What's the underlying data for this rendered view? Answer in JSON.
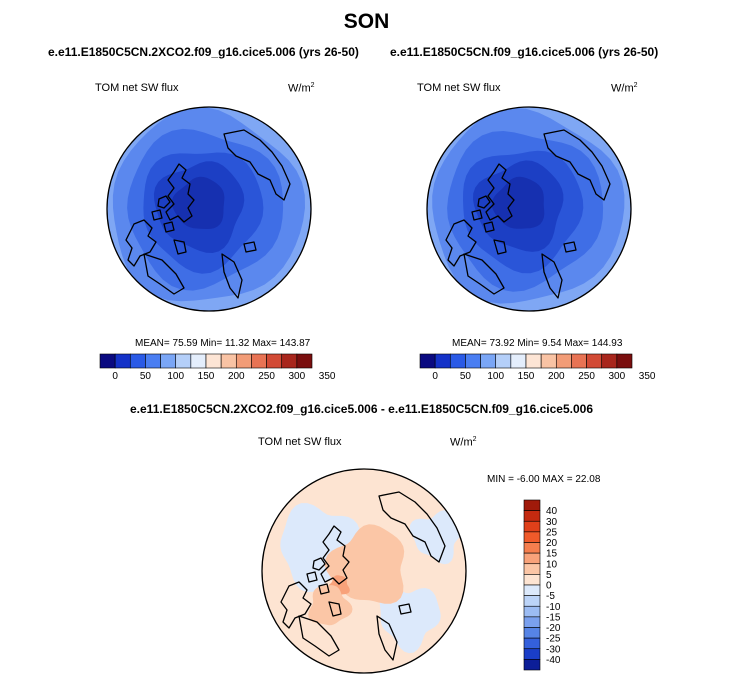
{
  "season": "SON",
  "panels": [
    {
      "case": "e.e11.E1850C5CN.2XCO2.f09_g16.cice5.006 (yrs 26-50)",
      "variable": "TOM net SW flux",
      "units_base": "W/m",
      "units_exp": "2",
      "stats": "MEAN=  75.59  Min=  11.32  Max= 143.87"
    },
    {
      "case": "e.e11.E1850C5CN.f09_g16.cice5.006 (yrs 26-50)",
      "variable": "TOM net SW flux",
      "units_base": "W/m",
      "units_exp": "2",
      "stats": "MEAN=  73.92  Min=   9.54  Max= 144.93"
    }
  ],
  "diff_panel": {
    "title": "e.e11.E1850C5CN.2XCO2.f09_g16.cice5.006 - e.e11.E1850C5CN.f09_g16.cice5.006",
    "variable": "TOM net SW flux",
    "units_base": "W/m",
    "units_exp": "2",
    "stats": "MIN =  -6.00 MAX =  22.08"
  },
  "chart_data": [
    {
      "type": "heatmap",
      "projection": "north-polar-stereographic",
      "title": "e.e11.E1850C5CN.2XCO2.f09_g16.cice5.006 (yrs 26-50)",
      "variable": "TOM net SW flux",
      "units": "W/m2",
      "mean": 75.59,
      "min": 11.32,
      "max": 143.87,
      "colorbar_ticks": [
        "0",
        "50",
        "100",
        "150",
        "200",
        "250",
        "300",
        "350"
      ],
      "colorbar_colors": [
        "#0a0a80",
        "#1432c8",
        "#2a5ae6",
        "#4a7ef2",
        "#7aa6f6",
        "#b4cff9",
        "#e4eefc",
        "#fde5d5",
        "#f9c3a4",
        "#f29c77",
        "#e87354",
        "#d24a35",
        "#a8261c",
        "#7a0e0e"
      ]
    },
    {
      "type": "heatmap",
      "projection": "north-polar-stereographic",
      "title": "e.e11.E1850C5CN.f09_g16.cice5.006 (yrs 26-50)",
      "variable": "TOM net SW flux",
      "units": "W/m2",
      "mean": 73.92,
      "min": 9.54,
      "max": 144.93,
      "colorbar_ticks": [
        "0",
        "50",
        "100",
        "150",
        "200",
        "250",
        "300",
        "350"
      ],
      "colorbar_colors": [
        "#0a0a80",
        "#1432c8",
        "#2a5ae6",
        "#4a7ef2",
        "#7aa6f6",
        "#b4cff9",
        "#e4eefc",
        "#fde5d5",
        "#f9c3a4",
        "#f29c77",
        "#e87354",
        "#d24a35",
        "#a8261c",
        "#7a0e0e"
      ]
    },
    {
      "type": "heatmap",
      "projection": "north-polar-stereographic",
      "title": "e.e11.E1850C5CN.2XCO2.f09_g16.cice5.006 - e.e11.E1850C5CN.f09_g16.cice5.006",
      "variable": "TOM net SW flux",
      "units": "W/m2",
      "min": -6.0,
      "max": 22.08,
      "colorbar_ticks": [
        "40",
        "30",
        "25",
        "20",
        "15",
        "10",
        "5",
        "0",
        "-5",
        "-10",
        "-15",
        "-20",
        "-25",
        "-30",
        "-40"
      ],
      "colorbar_colors": [
        "#a01a0a",
        "#c42a10",
        "#e0401a",
        "#f05a2a",
        "#f57e4e",
        "#f8a27a",
        "#fbc6a6",
        "#fde4d2",
        "#dce9fb",
        "#bcd4f8",
        "#9cbcf3",
        "#7aa0ee",
        "#5684e6",
        "#3460dc",
        "#1a3ec8",
        "#0c1e98"
      ]
    }
  ]
}
